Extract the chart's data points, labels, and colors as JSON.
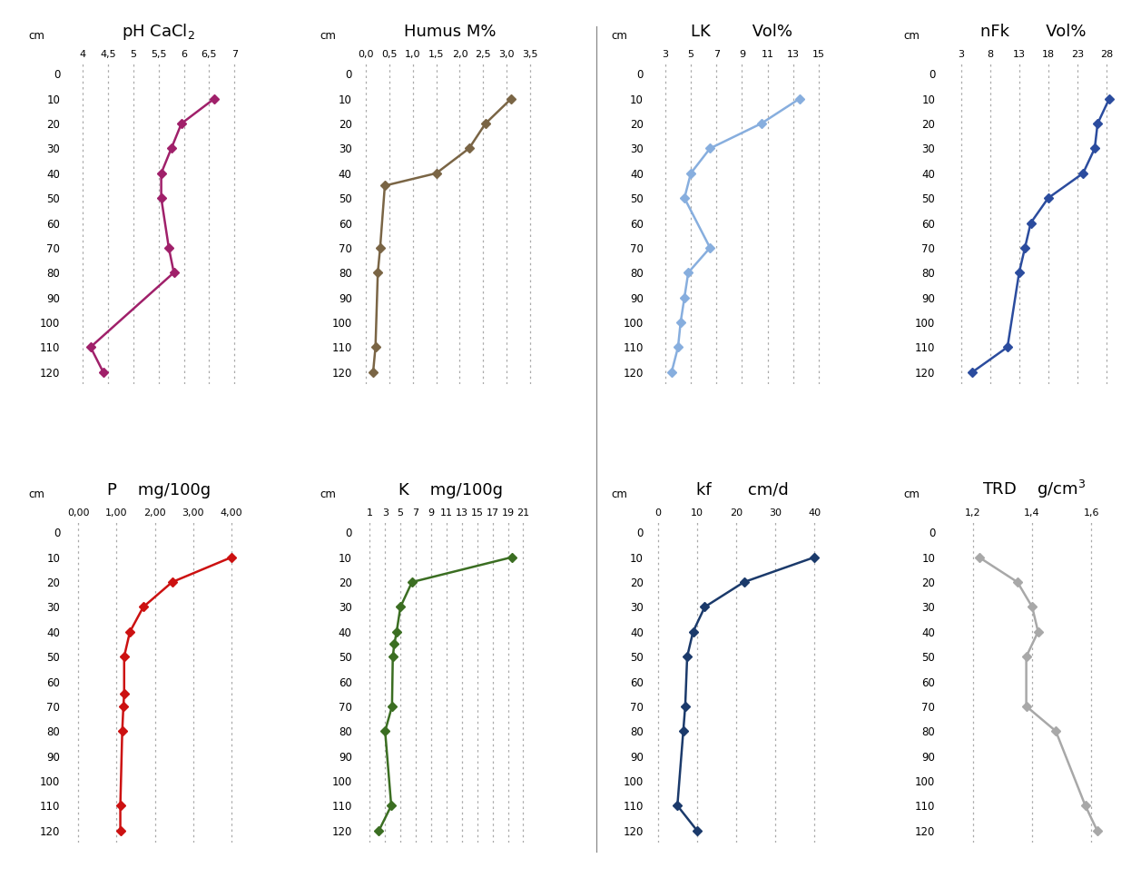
{
  "ph": {
    "title": "pH CaCl$_2$",
    "xticks": [
      4,
      4.5,
      5,
      5.5,
      6,
      6.5,
      7
    ],
    "xtick_labels": [
      "4",
      "4,5",
      "5",
      "5,5",
      "6",
      "6,5",
      "7"
    ],
    "xlim": [
      3.6,
      7.4
    ],
    "depth": [
      10,
      20,
      30,
      40,
      50,
      70,
      80,
      110,
      120
    ],
    "values": [
      6.6,
      5.95,
      5.75,
      5.55,
      5.55,
      5.7,
      5.8,
      4.15,
      4.4
    ],
    "color": "#A0206A"
  },
  "humus": {
    "title": "Humus M%",
    "xticks": [
      0.0,
      0.5,
      1.0,
      1.5,
      2.0,
      2.5,
      3.0,
      3.5
    ],
    "xtick_labels": [
      "0,0",
      "0,5",
      "1,0",
      "1,5",
      "2,0",
      "2,5",
      "3,0",
      "3,5"
    ],
    "xlim": [
      -0.25,
      3.85
    ],
    "depth": [
      10,
      20,
      30,
      40,
      45,
      70,
      80,
      110,
      120
    ],
    "values": [
      3.1,
      2.55,
      2.2,
      1.5,
      0.4,
      0.3,
      0.25,
      0.2,
      0.15
    ],
    "color": "#7A6545"
  },
  "lk": {
    "title": "LK",
    "title2": "Vol%",
    "xticks": [
      3,
      5,
      7,
      9,
      11,
      13,
      15
    ],
    "xtick_labels": [
      "3",
      "5",
      "7",
      "9",
      "11",
      "13",
      "15"
    ],
    "xlim": [
      1.5,
      16.5
    ],
    "depth": [
      10,
      20,
      30,
      40,
      50,
      70,
      80,
      90,
      100,
      110,
      120
    ],
    "values": [
      13.5,
      10.5,
      6.5,
      5.0,
      4.5,
      6.5,
      4.8,
      4.5,
      4.2,
      4.0,
      3.5
    ],
    "color": "#87AEDE"
  },
  "nfk": {
    "title": "nFk",
    "title2": "Vol%",
    "xticks": [
      3,
      8,
      13,
      18,
      23,
      28
    ],
    "xtick_labels": [
      "3",
      "8",
      "13",
      "18",
      "23",
      "28"
    ],
    "xlim": [
      -1,
      32
    ],
    "depth": [
      10,
      20,
      30,
      40,
      50,
      60,
      70,
      80,
      110,
      120
    ],
    "values": [
      28.5,
      26.5,
      26.0,
      24.0,
      18.0,
      15.0,
      14.0,
      13.0,
      11.0,
      5.0
    ],
    "color": "#2B4C9E"
  },
  "p": {
    "title": "P",
    "title2": "mg/100g",
    "xticks": [
      0.0,
      1.0,
      2.0,
      3.0,
      4.0
    ],
    "xtick_labels": [
      "0,00",
      "1,00",
      "2,00",
      "3,00",
      "4,00"
    ],
    "xlim": [
      -0.4,
      4.6
    ],
    "depth": [
      10,
      20,
      30,
      40,
      50,
      65,
      70,
      80,
      110,
      120
    ],
    "values": [
      4.0,
      2.45,
      1.7,
      1.35,
      1.2,
      1.2,
      1.18,
      1.15,
      1.1,
      1.1
    ],
    "color": "#CC1111"
  },
  "k": {
    "title": "K",
    "title2": "mg/100g",
    "xticks": [
      1,
      3,
      5,
      7,
      9,
      11,
      13,
      15,
      17,
      19,
      21
    ],
    "xtick_labels": [
      "1",
      "3",
      "5",
      "7",
      "9",
      "11",
      "13",
      "15",
      "17",
      "19",
      "21"
    ],
    "xlim": [
      -1,
      24
    ],
    "depth": [
      10,
      20,
      30,
      40,
      45,
      50,
      70,
      80,
      110,
      120
    ],
    "values": [
      19.5,
      6.5,
      5.0,
      4.5,
      4.2,
      4.0,
      3.9,
      3.0,
      3.8,
      2.2
    ],
    "color": "#3B6E22"
  },
  "kf": {
    "title": "kf",
    "title2": "cm/d",
    "xticks": [
      0,
      10,
      20,
      30,
      40
    ],
    "xtick_labels": [
      "0",
      "10",
      "20",
      "30",
      "40"
    ],
    "xlim": [
      -3,
      46
    ],
    "depth": [
      10,
      20,
      30,
      40,
      50,
      70,
      80,
      110,
      120
    ],
    "values": [
      40.0,
      22.0,
      12.0,
      9.0,
      7.5,
      7.0,
      6.5,
      5.0,
      10.0
    ],
    "color": "#1B3A6B"
  },
  "trd": {
    "title": "TRD",
    "title2": "g/cm³",
    "xticks": [
      1.2,
      1.4,
      1.6
    ],
    "xtick_labels": [
      "1,2",
      "1,4",
      "1,6"
    ],
    "xlim": [
      1.08,
      1.73
    ],
    "depth": [
      10,
      20,
      30,
      40,
      50,
      70,
      80,
      110,
      120
    ],
    "values": [
      1.22,
      1.35,
      1.4,
      1.42,
      1.38,
      1.38,
      1.48,
      1.58,
      1.62
    ],
    "color": "#A8A8A8"
  },
  "depth_ticks": [
    0,
    10,
    20,
    30,
    40,
    50,
    60,
    70,
    80,
    90,
    100,
    110,
    120
  ],
  "ylim": [
    125,
    -5
  ],
  "background_color": "#FFFFFF",
  "grid_color": "#AAAAAA",
  "separator_color": "#888888"
}
